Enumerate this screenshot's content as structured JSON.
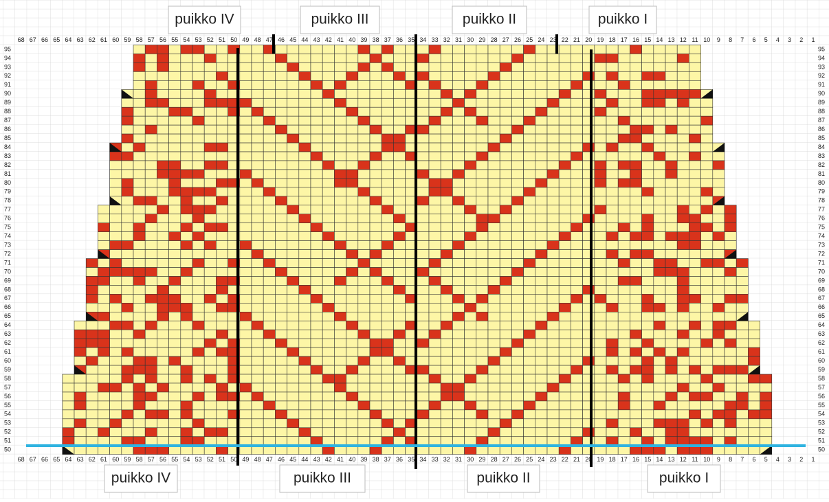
{
  "header": {
    "labels": [
      "puikko IV",
      "puikko III",
      "puikko II",
      "puikko I"
    ]
  },
  "footer": {
    "labels": [
      "puikko IV",
      "puikko III",
      "puikko II",
      "puikko I"
    ]
  },
  "grid": {
    "columns": [
      68,
      67,
      66,
      65,
      64,
      63,
      62,
      61,
      60,
      59,
      58,
      57,
      56,
      55,
      54,
      53,
      52,
      51,
      50,
      49,
      48,
      47,
      46,
      45,
      44,
      43,
      42,
      41,
      40,
      39,
      38,
      37,
      36,
      35,
      34,
      33,
      32,
      31,
      30,
      29,
      28,
      27,
      26,
      25,
      24,
      23,
      22,
      21,
      20,
      19,
      18,
      17,
      16,
      15,
      14,
      13,
      12,
      11,
      10,
      9,
      8,
      7,
      6,
      5,
      4,
      3,
      2,
      1
    ],
    "rows": [
      95,
      94,
      93,
      92,
      91,
      90,
      89,
      88,
      87,
      86,
      85,
      84,
      83,
      82,
      81,
      80,
      79,
      78,
      77,
      76,
      75,
      74,
      73,
      72,
      71,
      70,
      69,
      68,
      67,
      66,
      65,
      64,
      63,
      62,
      61,
      60,
      59,
      58,
      57,
      56,
      55,
      54,
      53,
      52,
      51,
      50
    ]
  }
}
